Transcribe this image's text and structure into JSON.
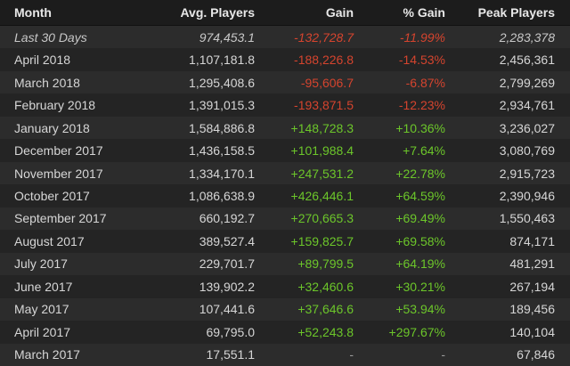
{
  "table": {
    "header": [
      "Month",
      "Avg. Players",
      "Gain",
      "% Gain",
      "Peak Players"
    ],
    "rows": [
      [
        "Last 30 Days",
        "974,453.1",
        "-132,728.7",
        "-11.99%",
        "2,283,378"
      ],
      [
        "April 2018",
        "1,107,181.8",
        "-188,226.8",
        "-14.53%",
        "2,456,361"
      ],
      [
        "March 2018",
        "1,295,408.6",
        "-95,606.7",
        "-6.87%",
        "2,799,269"
      ],
      [
        "February 2018",
        "1,391,015.3",
        "-193,871.5",
        "-12.23%",
        "2,934,761"
      ],
      [
        "January 2018",
        "1,584,886.8",
        "+148,728.3",
        "+10.36%",
        "3,236,027"
      ],
      [
        "December 2017",
        "1,436,158.5",
        "+101,988.4",
        "+7.64%",
        "3,080,769"
      ],
      [
        "November 2017",
        "1,334,170.1",
        "+247,531.2",
        "+22.78%",
        "2,915,723"
      ],
      [
        "October 2017",
        "1,086,638.9",
        "+426,446.1",
        "+64.59%",
        "2,390,946"
      ],
      [
        "September 2017",
        "660,192.7",
        "+270,665.3",
        "+69.49%",
        "1,550,463"
      ],
      [
        "August 2017",
        "389,527.4",
        "+159,825.7",
        "+69.58%",
        "874,171"
      ],
      [
        "July 2017",
        "229,701.7",
        "+89,799.5",
        "+64.19%",
        "481,291"
      ],
      [
        "June 2017",
        "139,902.2",
        "+32,460.6",
        "+30.21%",
        "267,194"
      ],
      [
        "May 2017",
        "107,441.6",
        "+37,646.6",
        "+53.94%",
        "189,456"
      ],
      [
        "April 2017",
        "69,795.0",
        "+52,243.8",
        "+297.67%",
        "140,104"
      ],
      [
        "March 2017",
        "17,551.1",
        "-",
        "-",
        "67,846"
      ]
    ]
  }
}
